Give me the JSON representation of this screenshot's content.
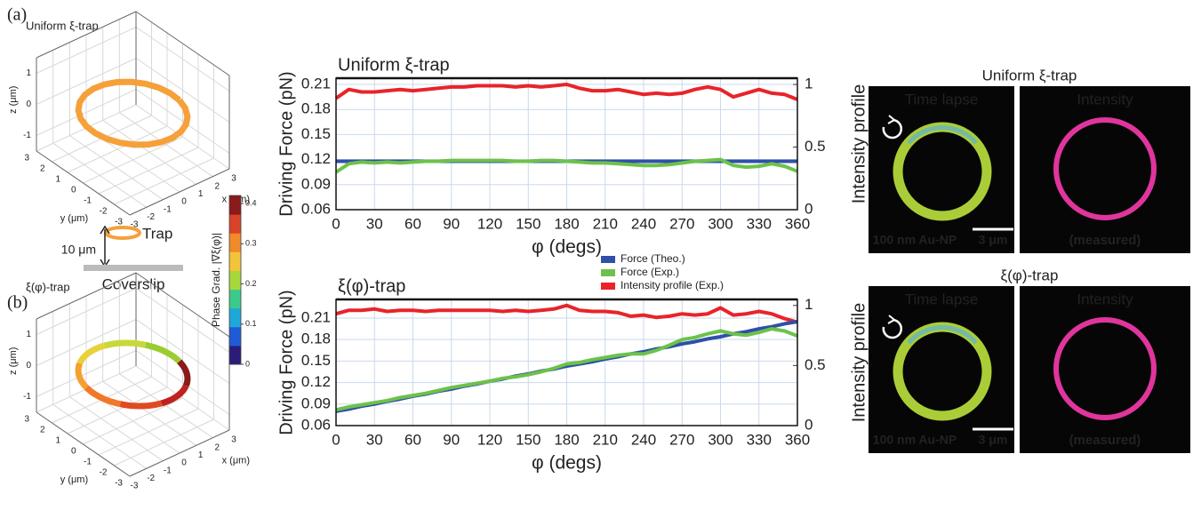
{
  "panel_labels": [
    "(a)",
    "(b)"
  ],
  "setup": {
    "distance": "10 μm",
    "trap": "Trap",
    "coverslip": "Coverslip"
  },
  "chart_data": [
    {
      "type": "ring3d",
      "title": "Uniform ξ-trap",
      "xlabel": "x (μm)",
      "ylabel": "y (μm)",
      "zlabel": "z (μm)",
      "xlim": [
        -3,
        3
      ],
      "ylim": [
        -3,
        3
      ],
      "zlim": [
        -1.5,
        1.5
      ],
      "xticks": [
        -3,
        -2,
        -1,
        0,
        1,
        2,
        3
      ],
      "yticks": [
        -3,
        -2,
        -1,
        0,
        1,
        2,
        3
      ],
      "zticks": [
        -1,
        0,
        1
      ],
      "ring_colors": [
        "#f6a03a"
      ]
    },
    {
      "type": "ring3d",
      "title": "ξ(φ)-trap",
      "xlabel": "x (μm)",
      "ylabel": "y (μm)",
      "zlabel": "z (μm)",
      "xlim": [
        -3,
        3
      ],
      "ylim": [
        -3,
        3
      ],
      "zlim": [
        -1.5,
        1.5
      ],
      "xticks": [
        -3,
        -2,
        -1,
        0,
        1,
        2,
        3
      ],
      "yticks": [
        -3,
        -2,
        -1,
        0,
        1,
        2,
        3
      ],
      "zticks": [
        -1,
        0,
        1
      ],
      "ring_colors": [
        "#9acd32",
        "#c8d83a",
        "#e8d23a",
        "#f5a030",
        "#f07828",
        "#e04a20",
        "#c02020",
        "#8b1a1a"
      ]
    },
    {
      "type": "colorbar",
      "label": "Phase Grad. |∇ξ(φ)|",
      "ylim": [
        0,
        0.42
      ],
      "yticks": [
        0,
        0.1,
        0.2,
        0.3,
        0.4
      ],
      "colors": [
        "#2b1c7a",
        "#1f5bd6",
        "#1ea8d8",
        "#3cc98c",
        "#a6d83c",
        "#f3c43a",
        "#f08a2a",
        "#d8432a",
        "#8b1a1a"
      ]
    },
    {
      "type": "line",
      "title": "Uniform ξ-trap",
      "xlabel": "φ (degs)",
      "ylabel": "Driving Force (pN)",
      "y2label": "Intensity profile",
      "ylabel_color": "#2a8ad4",
      "y2label_color": "#e8552a",
      "grid": true,
      "x": [
        0,
        10,
        20,
        30,
        40,
        50,
        60,
        70,
        80,
        90,
        100,
        110,
        120,
        130,
        140,
        150,
        160,
        170,
        180,
        190,
        200,
        210,
        220,
        230,
        240,
        250,
        260,
        270,
        280,
        290,
        300,
        310,
        320,
        330,
        340,
        350,
        360
      ],
      "xlim": [
        0,
        360
      ],
      "xticks": [
        0,
        30,
        60,
        90,
        120,
        150,
        180,
        210,
        240,
        270,
        300,
        330,
        360
      ],
      "ylim": [
        0.06,
        0.2175
      ],
      "yticks": [
        0.06,
        0.09,
        0.12,
        0.15,
        0.18,
        0.21
      ],
      "y2lim": [
        0,
        1.05
      ],
      "y2ticks": [
        0,
        0.5,
        1
      ],
      "series": [
        {
          "color": "#e8242a",
          "axis": "y2",
          "values": [
            0.89,
            0.96,
            0.94,
            0.94,
            0.95,
            0.96,
            0.95,
            0.96,
            0.97,
            0.98,
            0.98,
            0.99,
            0.99,
            0.99,
            0.98,
            0.99,
            0.98,
            0.99,
            1.0,
            0.97,
            0.95,
            0.95,
            0.96,
            0.94,
            0.92,
            0.93,
            0.92,
            0.93,
            0.96,
            0.98,
            0.96,
            0.9,
            0.93,
            0.96,
            0.93,
            0.92,
            0.88
          ]
        },
        {
          "color": "#2f4fa8",
          "values": [
            0.118,
            0.118,
            0.118,
            0.118,
            0.118,
            0.118,
            0.118,
            0.118,
            0.118,
            0.118,
            0.118,
            0.118,
            0.118,
            0.118,
            0.118,
            0.118,
            0.118,
            0.118,
            0.118,
            0.118,
            0.118,
            0.118,
            0.118,
            0.118,
            0.118,
            0.118,
            0.118,
            0.118,
            0.118,
            0.118,
            0.118,
            0.118,
            0.118,
            0.118,
            0.118,
            0.118,
            0.118
          ]
        },
        {
          "color": "#6cc24a",
          "values": [
            0.105,
            0.115,
            0.117,
            0.116,
            0.117,
            0.116,
            0.117,
            0.118,
            0.118,
            0.119,
            0.119,
            0.119,
            0.119,
            0.119,
            0.118,
            0.118,
            0.119,
            0.119,
            0.118,
            0.117,
            0.116,
            0.116,
            0.115,
            0.114,
            0.113,
            0.113,
            0.114,
            0.116,
            0.118,
            0.119,
            0.12,
            0.113,
            0.111,
            0.112,
            0.115,
            0.112,
            0.106
          ]
        }
      ]
    },
    {
      "type": "line",
      "title": "ξ(φ)-trap",
      "xlabel": "φ (degs)",
      "ylabel": "Driving Force (pN)",
      "y2label": "Intensity profile",
      "ylabel_color": "#2a8ad4",
      "y2label_color": "#e8552a",
      "grid": true,
      "legend": "upper right",
      "x": [
        0,
        10,
        20,
        30,
        40,
        50,
        60,
        70,
        80,
        90,
        100,
        110,
        120,
        130,
        140,
        150,
        160,
        170,
        180,
        190,
        200,
        210,
        220,
        230,
        240,
        250,
        260,
        270,
        280,
        290,
        300,
        310,
        320,
        330,
        340,
        350,
        360
      ],
      "xlim": [
        0,
        360
      ],
      "xticks": [
        0,
        30,
        60,
        90,
        120,
        150,
        180,
        210,
        240,
        270,
        300,
        330,
        360
      ],
      "ylim": [
        0.06,
        0.236
      ],
      "yticks": [
        0.06,
        0.09,
        0.12,
        0.15,
        0.18,
        0.21
      ],
      "y2lim": [
        0,
        1.05
      ],
      "y2ticks": [
        0,
        0.5,
        1
      ],
      "series": [
        {
          "name": "Intensity profile (Exp.)",
          "color": "#e8242a",
          "axis": "y2",
          "values": [
            0.93,
            0.96,
            0.96,
            0.97,
            0.95,
            0.96,
            0.96,
            0.95,
            0.96,
            0.96,
            0.96,
            0.96,
            0.96,
            0.95,
            0.96,
            0.95,
            0.96,
            0.97,
            1.0,
            0.96,
            0.95,
            0.95,
            0.94,
            0.91,
            0.92,
            0.9,
            0.91,
            0.93,
            0.92,
            0.93,
            0.98,
            0.92,
            0.93,
            0.95,
            0.93,
            0.89,
            0.86
          ]
        },
        {
          "name": "Force (Theo.)",
          "color": "#2f4fa8",
          "values": [
            0.08,
            0.083,
            0.087,
            0.09,
            0.094,
            0.097,
            0.101,
            0.104,
            0.108,
            0.111,
            0.115,
            0.118,
            0.122,
            0.125,
            0.129,
            0.132,
            0.136,
            0.139,
            0.143,
            0.146,
            0.149,
            0.153,
            0.156,
            0.16,
            0.163,
            0.167,
            0.17,
            0.174,
            0.177,
            0.181,
            0.184,
            0.188,
            0.191,
            0.195,
            0.198,
            0.202,
            0.205
          ]
        },
        {
          "name": "Force (Exp.)",
          "color": "#6cc24a",
          "values": [
            0.082,
            0.086,
            0.089,
            0.092,
            0.095,
            0.099,
            0.102,
            0.105,
            0.109,
            0.113,
            0.116,
            0.119,
            0.122,
            0.126,
            0.128,
            0.131,
            0.135,
            0.14,
            0.146,
            0.148,
            0.152,
            0.155,
            0.158,
            0.16,
            0.16,
            0.165,
            0.172,
            0.18,
            0.183,
            0.188,
            0.192,
            0.188,
            0.186,
            0.19,
            0.195,
            0.192,
            0.185
          ]
        }
      ]
    }
  ],
  "images": [
    {
      "title": "Uniform ξ-trap",
      "left_label": "Time lapse",
      "right_label": "Intensity",
      "particle": "100 nm Au-NP",
      "scale": "3 μm",
      "note": "(measured)"
    },
    {
      "title": "ξ(φ)-trap",
      "left_label": "Time lapse",
      "right_label": "Intensity",
      "particle": "100 nm Au-NP",
      "scale": "3 μm",
      "note": "(measured)"
    }
  ]
}
